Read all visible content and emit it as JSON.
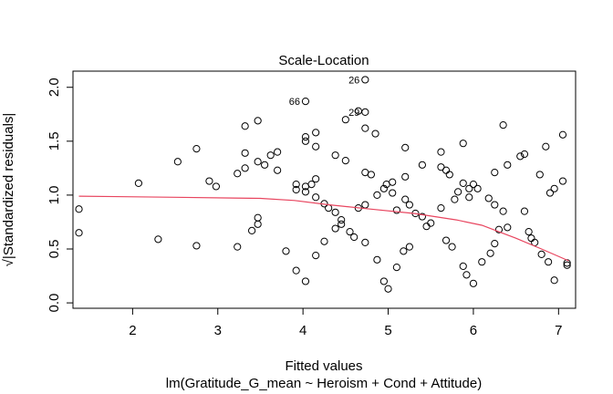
{
  "chart_data": {
    "type": "scatter",
    "title": "Scale-Location",
    "xlabel": "Fitted values",
    "ylabel": "√|Standardized residuals|",
    "subtitle": "lm(Gratitude_G_mean ~ Heroism + Cond + Attitude)",
    "xlim": [
      1.3,
      7.2
    ],
    "ylim": [
      -0.05,
      2.15
    ],
    "x_ticks": [
      "2",
      "3",
      "4",
      "5",
      "6",
      "7"
    ],
    "y_ticks": [
      "0.0",
      "0.5",
      "1.0",
      "1.5",
      "2.0"
    ],
    "grid": false,
    "colors": {
      "points": "#000000",
      "smoother": "#e8455f"
    },
    "annotations": [
      {
        "text": "26",
        "x": 4.73,
        "y": 2.07
      },
      {
        "text": "66",
        "x": 4.03,
        "y": 1.87
      },
      {
        "text": "29",
        "x": 4.73,
        "y": 1.77
      }
    ],
    "points": [
      [
        1.37,
        0.87
      ],
      [
        1.37,
        0.65
      ],
      [
        2.07,
        1.11
      ],
      [
        2.3,
        0.59
      ],
      [
        2.53,
        1.31
      ],
      [
        2.75,
        1.43
      ],
      [
        2.75,
        0.53
      ],
      [
        2.9,
        1.13
      ],
      [
        2.98,
        1.08
      ],
      [
        3.23,
        1.2
      ],
      [
        3.23,
        0.52
      ],
      [
        3.32,
        1.64
      ],
      [
        3.32,
        1.39
      ],
      [
        3.32,
        1.25
      ],
      [
        3.4,
        0.67
      ],
      [
        3.47,
        1.69
      ],
      [
        3.47,
        1.31
      ],
      [
        3.47,
        0.79
      ],
      [
        3.47,
        0.73
      ],
      [
        3.55,
        1.28
      ],
      [
        3.62,
        1.37
      ],
      [
        3.7,
        1.4
      ],
      [
        3.7,
        1.23
      ],
      [
        3.8,
        0.48
      ],
      [
        3.92,
        1.1
      ],
      [
        3.92,
        1.05
      ],
      [
        3.92,
        0.3
      ],
      [
        4.03,
        1.54
      ],
      [
        4.03,
        1.5
      ],
      [
        4.03,
        1.08
      ],
      [
        4.03,
        1.03
      ],
      [
        4.03,
        0.2
      ],
      [
        4.1,
        1.1
      ],
      [
        4.15,
        1.58
      ],
      [
        4.15,
        1.45
      ],
      [
        4.15,
        1.15
      ],
      [
        4.15,
        0.98
      ],
      [
        4.15,
        0.44
      ],
      [
        4.25,
        0.92
      ],
      [
        4.25,
        0.57
      ],
      [
        4.3,
        0.88
      ],
      [
        4.38,
        1.37
      ],
      [
        4.38,
        0.84
      ],
      [
        4.38,
        0.69
      ],
      [
        4.45,
        0.77
      ],
      [
        4.45,
        0.73
      ],
      [
        4.5,
        1.7
      ],
      [
        4.5,
        1.32
      ],
      [
        4.55,
        0.66
      ],
      [
        4.6,
        0.61
      ],
      [
        4.65,
        1.78
      ],
      [
        4.65,
        0.88
      ],
      [
        4.73,
        1.62
      ],
      [
        4.73,
        1.21
      ],
      [
        4.73,
        0.91
      ],
      [
        4.73,
        0.56
      ],
      [
        4.8,
        1.19
      ],
      [
        4.85,
        1.57
      ],
      [
        4.87,
        1.0
      ],
      [
        4.87,
        0.4
      ],
      [
        4.95,
        0.2
      ],
      [
        4.95,
        1.06
      ],
      [
        4.98,
        1.1
      ],
      [
        5.0,
        0.13
      ],
      [
        5.05,
        1.12
      ],
      [
        5.05,
        1.02
      ],
      [
        5.1,
        0.86
      ],
      [
        5.1,
        0.33
      ],
      [
        5.18,
        0.48
      ],
      [
        5.2,
        1.44
      ],
      [
        5.2,
        1.17
      ],
      [
        5.2,
        0.96
      ],
      [
        5.25,
        0.91
      ],
      [
        5.25,
        0.52
      ],
      [
        5.32,
        0.83
      ],
      [
        5.4,
        1.28
      ],
      [
        5.4,
        0.8
      ],
      [
        5.45,
        0.71
      ],
      [
        5.5,
        0.74
      ],
      [
        5.62,
        1.4
      ],
      [
        5.62,
        1.26
      ],
      [
        5.62,
        0.88
      ],
      [
        5.68,
        1.23
      ],
      [
        5.68,
        0.58
      ],
      [
        5.72,
        1.19
      ],
      [
        5.75,
        0.52
      ],
      [
        5.78,
        0.96
      ],
      [
        5.82,
        1.03
      ],
      [
        5.88,
        1.48
      ],
      [
        5.88,
        1.11
      ],
      [
        5.88,
        0.34
      ],
      [
        5.92,
        0.26
      ],
      [
        5.95,
        1.06
      ],
      [
        5.95,
        0.98
      ],
      [
        6.0,
        1.1
      ],
      [
        6.0,
        0.18
      ],
      [
        6.05,
        1.06
      ],
      [
        6.1,
        0.38
      ],
      [
        6.18,
        0.97
      ],
      [
        6.2,
        0.46
      ],
      [
        6.25,
        1.21
      ],
      [
        6.25,
        0.91
      ],
      [
        6.25,
        0.55
      ],
      [
        6.3,
        0.68
      ],
      [
        6.35,
        1.65
      ],
      [
        6.35,
        0.85
      ],
      [
        6.4,
        1.28
      ],
      [
        6.4,
        0.7
      ],
      [
        6.55,
        1.36
      ],
      [
        6.6,
        1.38
      ],
      [
        6.6,
        0.85
      ],
      [
        6.65,
        0.66
      ],
      [
        6.68,
        0.6
      ],
      [
        6.72,
        0.56
      ],
      [
        6.78,
        1.19
      ],
      [
        6.8,
        0.45
      ],
      [
        6.85,
        1.45
      ],
      [
        6.88,
        0.38
      ],
      [
        6.9,
        1.02
      ],
      [
        6.95,
        1.06
      ],
      [
        6.95,
        0.21
      ],
      [
        7.05,
        1.56
      ],
      [
        7.05,
        1.13
      ],
      [
        7.1,
        0.37
      ],
      [
        7.1,
        0.35
      ]
    ],
    "smoother": [
      [
        1.37,
        0.99
      ],
      [
        2.5,
        0.98
      ],
      [
        3.5,
        0.97
      ],
      [
        3.9,
        0.95
      ],
      [
        4.3,
        0.91
      ],
      [
        4.8,
        0.87
      ],
      [
        5.3,
        0.83
      ],
      [
        5.8,
        0.77
      ],
      [
        6.1,
        0.72
      ],
      [
        6.5,
        0.6
      ],
      [
        6.8,
        0.5
      ],
      [
        7.12,
        0.39
      ]
    ]
  }
}
